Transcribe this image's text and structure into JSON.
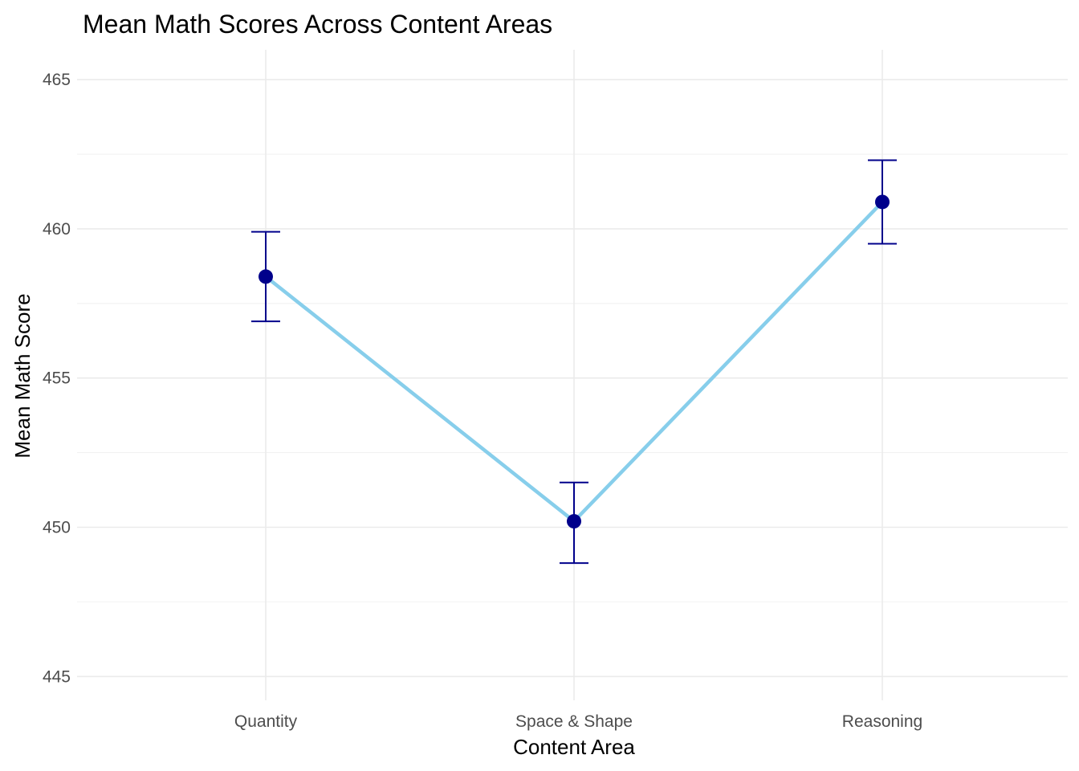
{
  "chart_data": {
    "type": "line",
    "title": "Mean Math Scores Across Content Areas",
    "xlabel": "Content Area",
    "ylabel": "Mean Math Score",
    "categories": [
      "Quantity",
      "Space & Shape",
      "Reasoning"
    ],
    "series": [
      {
        "values": [
          458.4,
          450.2,
          460.9
        ],
        "error_low": [
          456.9,
          448.8,
          459.5
        ],
        "error_high": [
          459.9,
          451.5,
          462.3
        ]
      }
    ],
    "ylim": [
      444.2,
      466.0
    ],
    "yticks": [
      445,
      450,
      455,
      460,
      465
    ],
    "ytick_labels": [
      "445",
      "450",
      "455",
      "460",
      "465"
    ],
    "grid": true,
    "legend": "none",
    "colors": {
      "line": "#87ceeb",
      "point": "#00008b",
      "errorbar": "#00008b",
      "grid": "#ebebeb"
    }
  }
}
